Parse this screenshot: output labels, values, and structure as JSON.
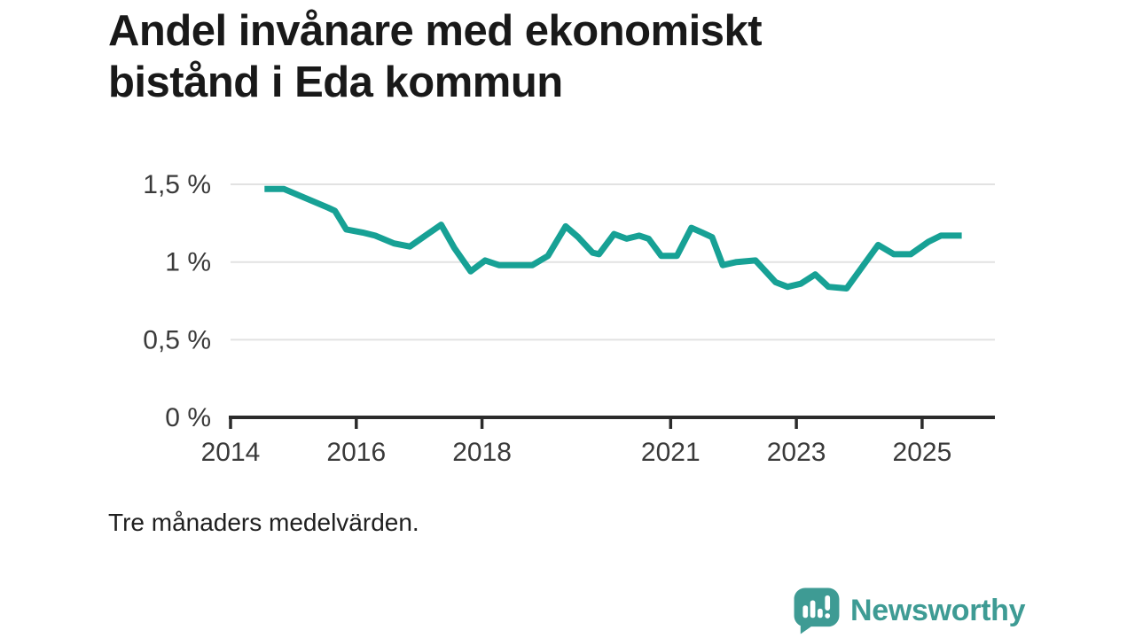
{
  "title": {
    "lines": [
      "Andel invånare med ekonomiskt",
      "bistånd i Eda kommun"
    ]
  },
  "footnote": "Tre månaders medelvärden.",
  "logo": {
    "text": "Newsworthy",
    "icon": "newsworthy-speech-bubble-bar-chart-icon",
    "color": "#3e9b94"
  },
  "colors": {
    "line": "#17a195",
    "grid": "#e2e2e2",
    "axis": "#2b2b2b",
    "tick_text": "#3a3a3a",
    "title_text": "#191919"
  },
  "chart_data": {
    "type": "line",
    "title": "Andel invånare med ekonomiskt bistånd i Eda kommun",
    "xlabel": "",
    "ylabel": "",
    "unit": "%",
    "grid": true,
    "x_range": [
      2014,
      2026.15
    ],
    "ylim": [
      0,
      1.5
    ],
    "x_ticks": [
      {
        "value": 2014,
        "label": "2014"
      },
      {
        "value": 2016,
        "label": "2016"
      },
      {
        "value": 2018,
        "label": "2018"
      },
      {
        "value": 2021,
        "label": "2021"
      },
      {
        "value": 2023,
        "label": "2023"
      },
      {
        "value": 2025,
        "label": "2025"
      }
    ],
    "y_ticks": [
      {
        "value": 0,
        "label": "0 %"
      },
      {
        "value": 0.5,
        "label": "0,5 %"
      },
      {
        "value": 1,
        "label": "1 %"
      },
      {
        "value": 1.5,
        "label": "1,5 %"
      }
    ],
    "series": [
      {
        "name": "Andel invånare med ekonomiskt bistånd",
        "points": [
          [
            2014.54,
            1.47
          ],
          [
            2014.85,
            1.47
          ],
          [
            2015.2,
            1.41
          ],
          [
            2015.55,
            1.35
          ],
          [
            2015.66,
            1.33
          ],
          [
            2015.84,
            1.21
          ],
          [
            2016.1,
            1.19
          ],
          [
            2016.3,
            1.17
          ],
          [
            2016.6,
            1.12
          ],
          [
            2016.85,
            1.1
          ],
          [
            2017.1,
            1.17
          ],
          [
            2017.35,
            1.24
          ],
          [
            2017.56,
            1.09
          ],
          [
            2017.82,
            0.94
          ],
          [
            2018.05,
            1.01
          ],
          [
            2018.27,
            0.98
          ],
          [
            2018.55,
            0.98
          ],
          [
            2018.8,
            0.98
          ],
          [
            2019.05,
            1.04
          ],
          [
            2019.33,
            1.23
          ],
          [
            2019.53,
            1.16
          ],
          [
            2019.76,
            1.06
          ],
          [
            2019.86,
            1.05
          ],
          [
            2020.1,
            1.18
          ],
          [
            2020.3,
            1.15
          ],
          [
            2020.5,
            1.17
          ],
          [
            2020.65,
            1.15
          ],
          [
            2020.85,
            1.04
          ],
          [
            2021.1,
            1.04
          ],
          [
            2021.33,
            1.22
          ],
          [
            2021.5,
            1.19
          ],
          [
            2021.66,
            1.16
          ],
          [
            2021.83,
            0.98
          ],
          [
            2022.05,
            1.0
          ],
          [
            2022.35,
            1.01
          ],
          [
            2022.67,
            0.87
          ],
          [
            2022.86,
            0.84
          ],
          [
            2023.07,
            0.86
          ],
          [
            2023.3,
            0.92
          ],
          [
            2023.51,
            0.84
          ],
          [
            2023.8,
            0.83
          ],
          [
            2024.05,
            0.97
          ],
          [
            2024.3,
            1.11
          ],
          [
            2024.55,
            1.05
          ],
          [
            2024.82,
            1.05
          ],
          [
            2025.1,
            1.13
          ],
          [
            2025.3,
            1.17
          ],
          [
            2025.63,
            1.17
          ]
        ]
      }
    ]
  }
}
